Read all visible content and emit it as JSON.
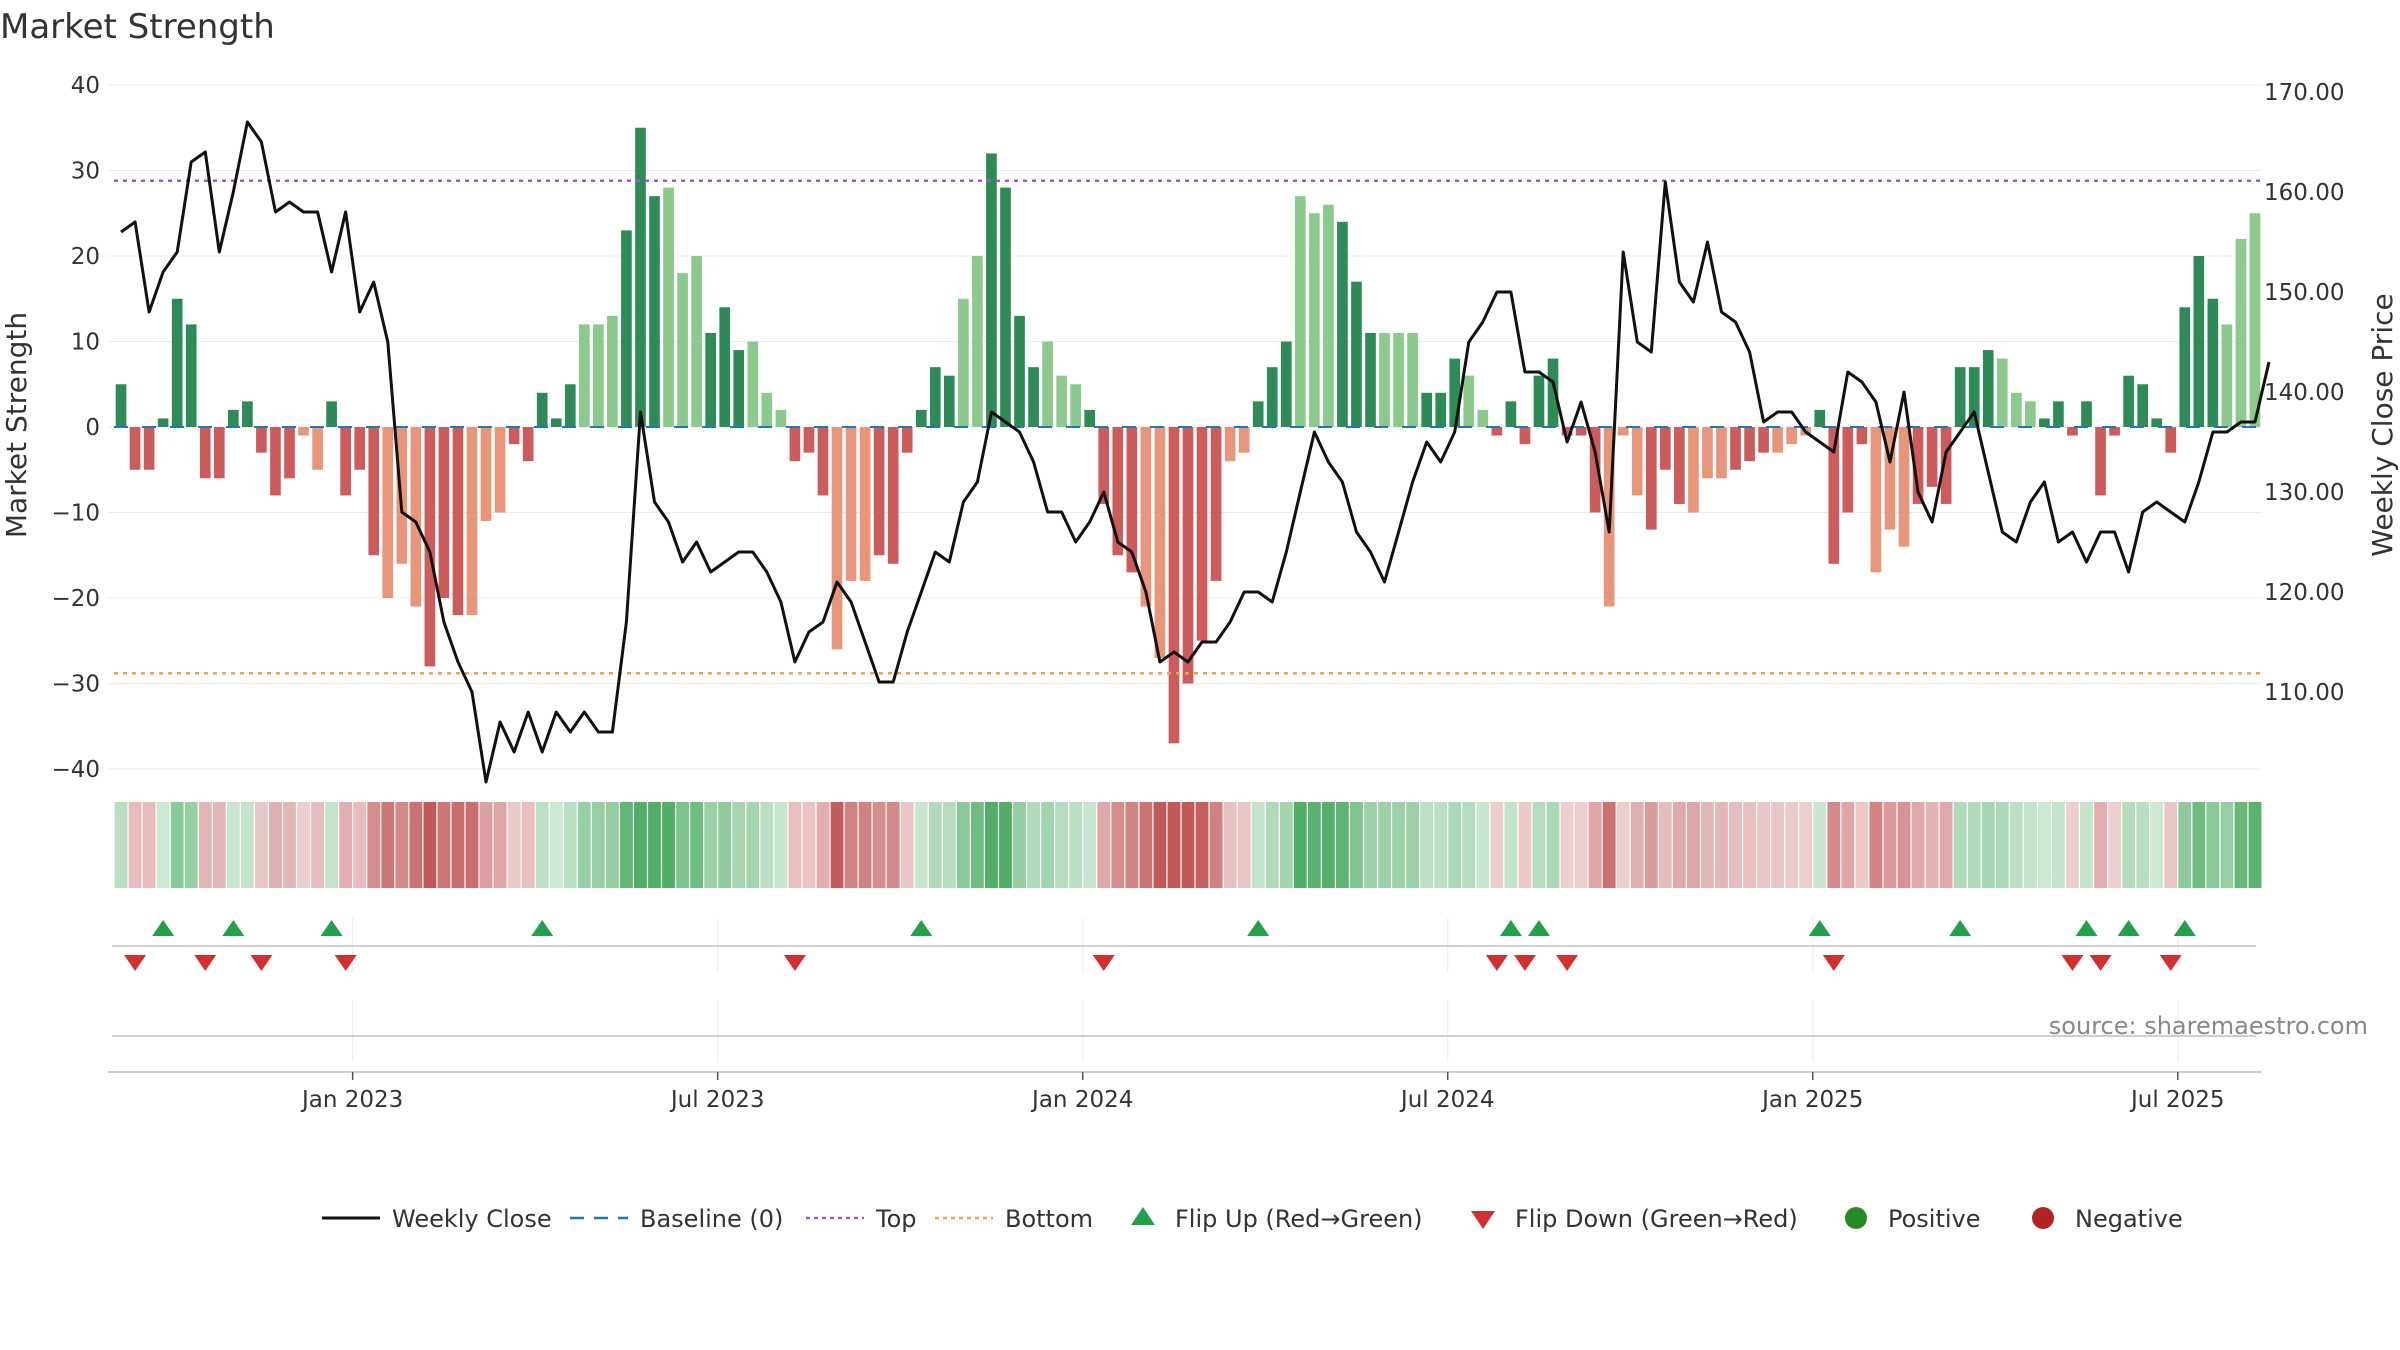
{
  "chart_data": {
    "type": "bar",
    "title": "Market Strength",
    "ylabel_left": "Market Strength",
    "ylabel_right": "Weekly Close Price",
    "ylim_left": [
      -40,
      40
    ],
    "ylim_right": [
      100,
      170
    ],
    "yticks_left": [
      "−40",
      "−30",
      "−20",
      "−10",
      "0",
      "10",
      "20",
      "30",
      "40"
    ],
    "yticks_right": [
      "110.00",
      "120.00",
      "130.00",
      "140.00",
      "150.00",
      "160.00",
      "170.00"
    ],
    "x_ticks": [
      "Jan 2023",
      "Jul 2023",
      "Jan 2024",
      "Jul 2024",
      "Jan 2025",
      "Jul 2025"
    ],
    "x_tick_weeks": [
      17,
      43,
      69,
      95,
      121,
      147
    ],
    "thresholds": {
      "top": 28.8,
      "bottom": -28.8
    },
    "strength": [
      5,
      -5,
      -5,
      1,
      15,
      12,
      -6,
      -6,
      2,
      3,
      -3,
      -8,
      -6,
      -1,
      -5,
      3,
      -8,
      -5,
      -15,
      -20,
      -16,
      -21,
      -28,
      -20,
      -22,
      -22,
      -11,
      -10,
      -2,
      -4,
      4,
      1,
      5,
      12,
      12,
      13,
      23,
      35,
      27,
      28,
      18,
      20,
      11,
      14,
      9,
      10,
      4,
      2,
      -4,
      -3,
      -8,
      -26,
      -18,
      -18,
      -15,
      -16,
      -3,
      2,
      7,
      6,
      15,
      20,
      32,
      28,
      13,
      7,
      10,
      6,
      5,
      2,
      -9,
      -15,
      -17,
      -21,
      -27,
      -37,
      -30,
      -25,
      -18,
      -4,
      -3,
      3,
      7,
      10,
      27,
      25,
      26,
      24,
      17,
      11,
      11,
      11,
      11,
      4,
      4,
      8,
      6,
      2,
      -1,
      3,
      -2,
      6,
      8,
      -1,
      -1,
      -10,
      -21,
      -1,
      -8,
      -12,
      -5,
      -9,
      -10,
      -6,
      -6,
      -5,
      -4,
      -3,
      -3,
      -2,
      -1,
      2,
      -16,
      -10,
      -2,
      -17,
      -12,
      -14,
      -9,
      -7,
      -9,
      7,
      7,
      9,
      8,
      4,
      3,
      1,
      3,
      -1,
      3,
      -8,
      -1,
      6,
      5,
      1,
      -3,
      14,
      20,
      15,
      12,
      22,
      25
    ],
    "weekly_close": [
      156,
      157,
      148,
      152,
      154,
      163,
      164,
      154,
      160,
      167,
      165,
      158,
      159,
      158,
      158,
      152,
      158,
      148,
      151,
      145,
      128,
      127,
      124,
      117,
      113,
      110,
      101,
      107,
      104,
      108,
      104,
      108,
      106,
      108,
      106,
      106,
      117,
      138,
      129,
      127,
      123,
      125,
      122,
      123,
      124,
      124,
      122,
      119,
      113,
      116,
      117,
      121,
      119,
      115,
      111,
      111,
      116,
      120,
      124,
      123,
      129,
      131,
      138,
      137,
      136,
      133,
      128,
      128,
      125,
      127,
      130,
      125,
      124,
      120,
      113,
      114,
      113,
      115,
      115,
      117,
      120,
      120,
      119,
      124,
      130,
      136,
      133,
      131,
      126,
      124,
      121,
      126,
      131,
      135,
      133,
      136,
      145,
      147,
      150,
      150,
      142,
      142,
      141,
      135,
      139,
      134,
      126,
      154,
      145,
      144,
      161,
      151,
      149,
      155,
      148,
      147,
      144,
      137,
      138,
      138,
      136,
      135,
      134,
      142,
      141,
      139,
      133,
      140,
      130,
      127,
      134,
      136,
      138,
      132,
      126,
      125,
      129,
      131,
      125,
      126,
      123,
      126,
      126,
      122,
      128,
      129,
      128,
      127,
      131,
      136,
      136,
      137,
      137,
      143
    ],
    "shade_scale": [
      1,
      0.75,
      0.5,
      0.25
    ],
    "legend": [
      {
        "label": "Weekly Close",
        "kind": "line"
      },
      {
        "label": "Baseline (0)",
        "kind": "dash"
      },
      {
        "label": "Top",
        "kind": "dot-purple"
      },
      {
        "label": "Bottom",
        "kind": "dot-orange"
      },
      {
        "label": "Flip Up (Red→Green)",
        "kind": "tri-up"
      },
      {
        "label": "Flip Down (Green→Red)",
        "kind": "tri-down"
      },
      {
        "label": "Positive",
        "kind": "circle-green"
      },
      {
        "label": "Negative",
        "kind": "circle-red"
      }
    ],
    "colors": {
      "green_dark": "#2e8b57",
      "green_light": "#8cc98c",
      "red_dark": "#cc5c5c",
      "red_light": "#e8967a",
      "line": "#111111",
      "baseline": "#1f77b4",
      "top": "#9b59d0",
      "bottom": "#f0a050",
      "flip_up": "#22a04a",
      "flip_down": "#d03030",
      "positive": "#228b22",
      "negative": "#b22222"
    }
  },
  "source": "source: sharemaestro.com"
}
